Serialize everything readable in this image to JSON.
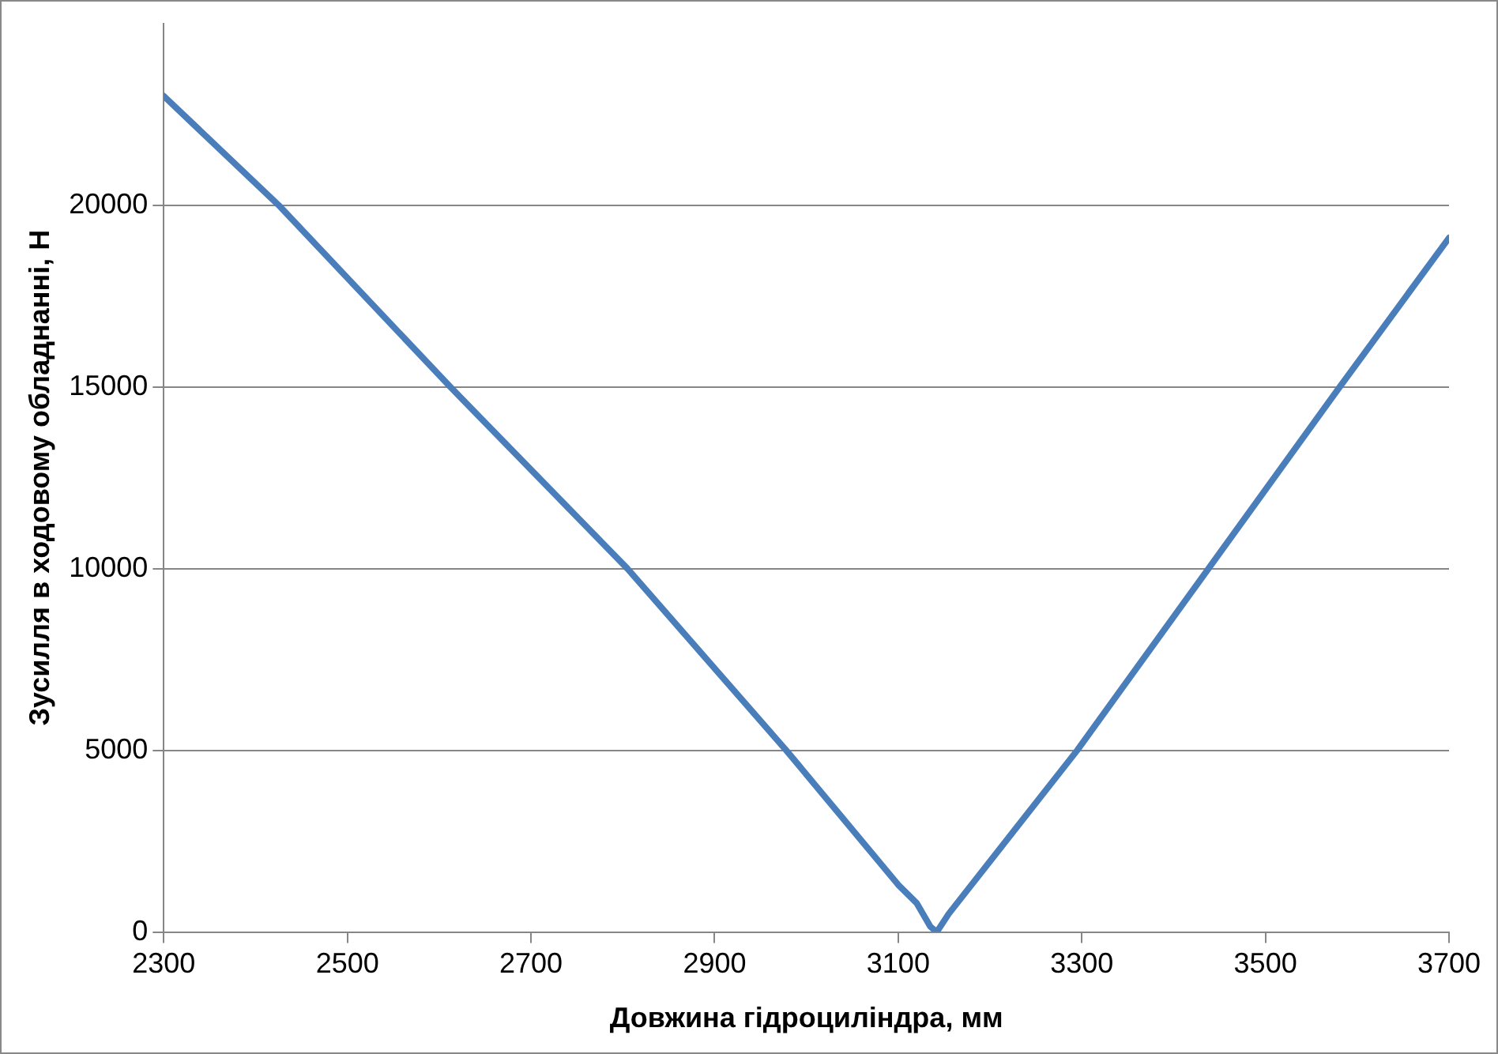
{
  "chart_data": {
    "type": "line",
    "xlabel": "Довжина гідроциліндра, мм",
    "ylabel": "Зусилля в ходовому обладнанні, Н",
    "xlim": [
      2300,
      3700
    ],
    "xticks": [
      2300,
      2500,
      2700,
      2900,
      3100,
      3300,
      3500,
      3700
    ],
    "ylim": [
      0,
      25000
    ],
    "yticks": [
      0,
      5000,
      10000,
      15000,
      20000
    ],
    "grid": "y",
    "legend": false,
    "marker": "none",
    "line_style": "solid",
    "series": [
      {
        "color": "#4a7ebb",
        "x": [
          2300,
          2425,
          2612,
          2805,
          2978,
          3100,
          3120,
          3135,
          3142,
          3155,
          3295,
          3438,
          3581,
          3700
        ],
        "values": [
          23000,
          20000,
          15000,
          10000,
          5000,
          1300,
          800,
          150,
          0,
          500,
          5000,
          10000,
          15000,
          19100
        ]
      }
    ]
  }
}
